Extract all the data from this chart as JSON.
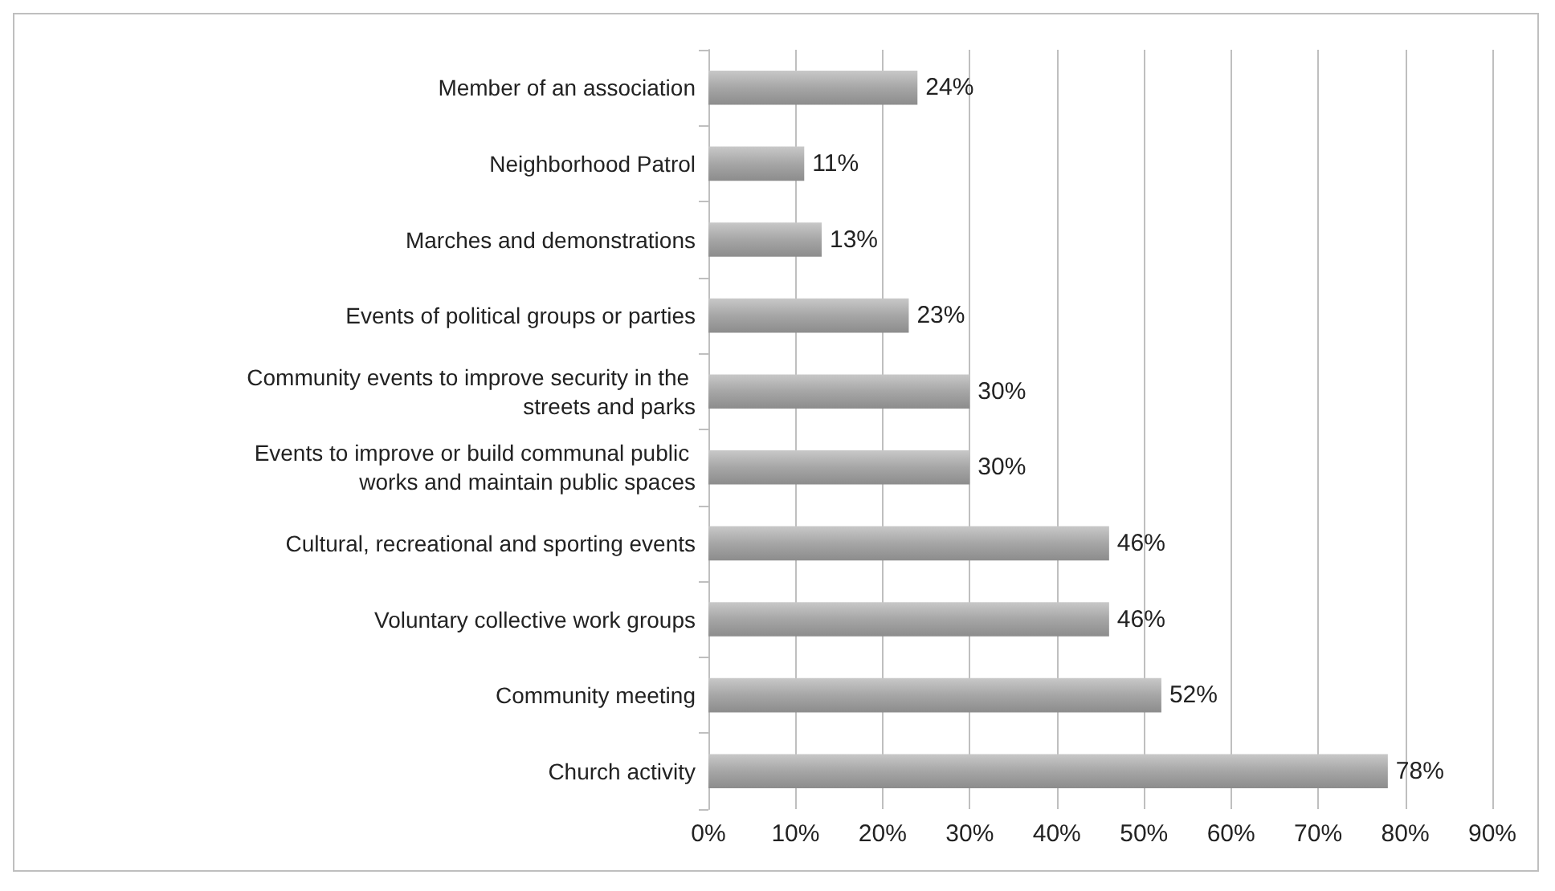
{
  "chart_data": {
    "type": "bar",
    "orientation": "horizontal",
    "categories": [
      "Member of an association",
      "Neighborhood Patrol",
      "Marches and demonstrations",
      "Events of political groups or parties",
      "Community events to improve security in the streets and parks",
      "Events to improve or build communal public works and maintain public spaces",
      "Cultural, recreational and sporting events",
      "Voluntary collective work groups",
      "Community meeting",
      "Church activity"
    ],
    "values": [
      24,
      11,
      13,
      23,
      30,
      30,
      46,
      46,
      52,
      78
    ],
    "value_labels": [
      "24%",
      "11%",
      "13%",
      "23%",
      "30%",
      "30%",
      "46%",
      "46%",
      "52%",
      "78%"
    ],
    "color": "#a6a6a6",
    "xlim": [
      0,
      90
    ],
    "xticks": [
      {
        "value": 0,
        "label": "0%"
      },
      {
        "value": 10,
        "label": "10%"
      },
      {
        "value": 20,
        "label": "20%"
      },
      {
        "value": 30,
        "label": "30%"
      },
      {
        "value": 40,
        "label": "40%"
      },
      {
        "value": 50,
        "label": "50%"
      },
      {
        "value": 60,
        "label": "60%"
      },
      {
        "value": 70,
        "label": "70%"
      },
      {
        "value": 80,
        "label": "80%"
      },
      {
        "value": 90,
        "label": "90%"
      }
    ],
    "grid": "x"
  }
}
